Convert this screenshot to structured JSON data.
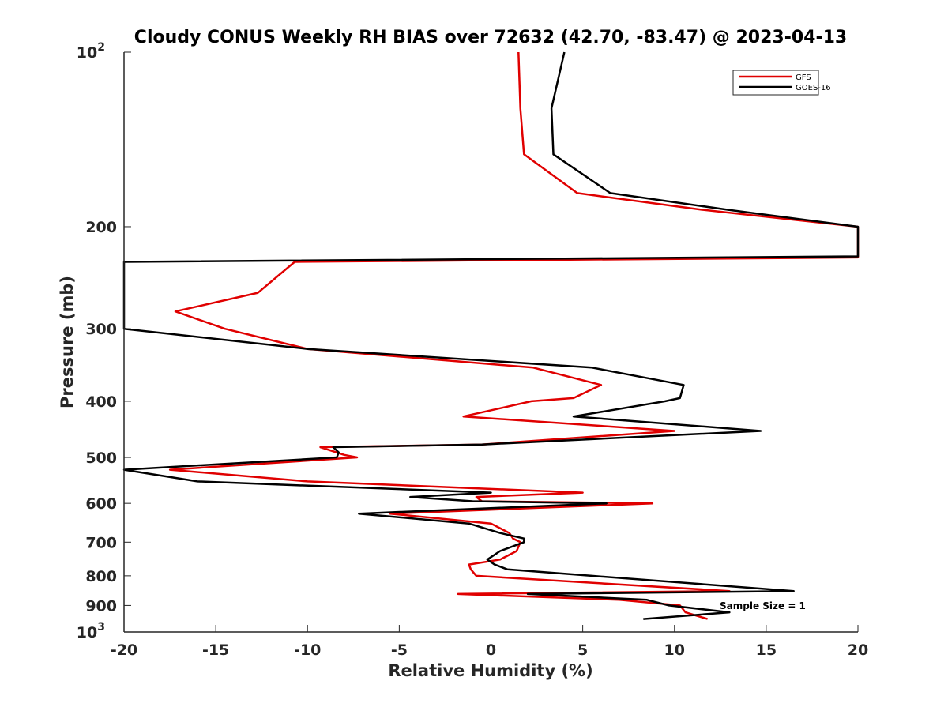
{
  "chart_data": {
    "type": "line",
    "title": "Cloudy CONUS Weekly RH BIAS over 72632 (42.70, -83.47) @ 2023-04-13",
    "xlabel": "Relative Humidity (%)",
    "ylabel": "Pressure (mb)",
    "xlim": [
      -20,
      20
    ],
    "ylim": [
      100,
      1000
    ],
    "y_scale": "log",
    "y_reversed": true,
    "x_ticks": [
      "-20",
      "-15",
      "-10",
      "-5",
      "0",
      "5",
      "10",
      "15",
      "20"
    ],
    "x_tick_values": [
      -20,
      -15,
      -10,
      -5,
      0,
      5,
      10,
      15,
      20
    ],
    "y_ticks": [
      {
        "value": 100,
        "base": "10",
        "exp": "2"
      },
      {
        "value": 200,
        "base": "200",
        "exp": ""
      },
      {
        "value": 300,
        "base": "300",
        "exp": ""
      },
      {
        "value": 400,
        "base": "400",
        "exp": ""
      },
      {
        "value": 500,
        "base": "500",
        "exp": ""
      },
      {
        "value": 600,
        "base": "600",
        "exp": ""
      },
      {
        "value": 700,
        "base": "700",
        "exp": ""
      },
      {
        "value": 800,
        "base": "800",
        "exp": ""
      },
      {
        "value": 900,
        "base": "900",
        "exp": ""
      },
      {
        "value": 1000,
        "base": "10",
        "exp": "3"
      }
    ],
    "grid": false,
    "legend_position": "top-right",
    "series": [
      {
        "name": "GFS",
        "color": "#e00000",
        "points": [
          [
            1.5,
            100
          ],
          [
            1.6,
            125
          ],
          [
            1.8,
            150
          ],
          [
            4.7,
            175
          ],
          [
            11.5,
            187
          ],
          [
            20.0,
            200
          ],
          [
            20.0,
            226
          ],
          [
            -10.7,
            230
          ],
          [
            -12.7,
            260
          ],
          [
            -17.2,
            280
          ],
          [
            -14.5,
            300
          ],
          [
            -10.0,
            325
          ],
          [
            2.3,
            350
          ],
          [
            6.0,
            375
          ],
          [
            4.5,
            395
          ],
          [
            2.2,
            400
          ],
          [
            -1.5,
            425
          ],
          [
            10.0,
            450
          ],
          [
            -0.5,
            475
          ],
          [
            -9.3,
            480
          ],
          [
            -8.0,
            495
          ],
          [
            -7.3,
            500
          ],
          [
            -17.5,
            525
          ],
          [
            -10.0,
            550
          ],
          [
            5.0,
            575
          ],
          [
            -0.8,
            585
          ],
          [
            -0.5,
            595
          ],
          [
            8.8,
            600
          ],
          [
            -5.5,
            625
          ],
          [
            0.0,
            650
          ],
          [
            1.0,
            675
          ],
          [
            1.2,
            690
          ],
          [
            1.6,
            700
          ],
          [
            1.4,
            725
          ],
          [
            0.5,
            750
          ],
          [
            -1.2,
            765
          ],
          [
            -1.1,
            780
          ],
          [
            -0.8,
            800
          ],
          [
            13.0,
            850
          ],
          [
            -1.8,
            860
          ],
          [
            7.0,
            880
          ],
          [
            10.3,
            900
          ],
          [
            10.6,
            925
          ],
          [
            11.8,
            950
          ]
        ]
      },
      {
        "name": "GOES-16",
        "color": "#000000",
        "points": [
          [
            4.0,
            100
          ],
          [
            3.3,
            125
          ],
          [
            3.4,
            150
          ],
          [
            6.5,
            175
          ],
          [
            12.9,
            187
          ],
          [
            20.0,
            200
          ],
          [
            20.0,
            225
          ],
          [
            -20.0,
            230
          ],
          [
            -20.0,
            300
          ],
          [
            -10.0,
            325
          ],
          [
            5.5,
            350
          ],
          [
            10.5,
            375
          ],
          [
            10.3,
            395
          ],
          [
            9.5,
            400
          ],
          [
            4.5,
            425
          ],
          [
            14.7,
            450
          ],
          [
            -0.5,
            475
          ],
          [
            -8.6,
            480
          ],
          [
            -8.3,
            490
          ],
          [
            -8.4,
            500
          ],
          [
            -20.0,
            525
          ],
          [
            -16.0,
            550
          ],
          [
            0.0,
            575
          ],
          [
            -4.4,
            585
          ],
          [
            -1.0,
            595
          ],
          [
            6.3,
            600
          ],
          [
            -7.2,
            625
          ],
          [
            -1.2,
            650
          ],
          [
            0.5,
            675
          ],
          [
            1.8,
            690
          ],
          [
            1.8,
            700
          ],
          [
            0.5,
            725
          ],
          [
            -0.2,
            750
          ],
          [
            0.2,
            765
          ],
          [
            0.9,
            780
          ],
          [
            5.5,
            800
          ],
          [
            16.5,
            850
          ],
          [
            2.0,
            860
          ],
          [
            8.5,
            880
          ],
          [
            9.7,
            900
          ],
          [
            13.0,
            925
          ],
          [
            8.3,
            950
          ]
        ]
      }
    ],
    "annotations": [
      "Sample Size = 1"
    ]
  }
}
